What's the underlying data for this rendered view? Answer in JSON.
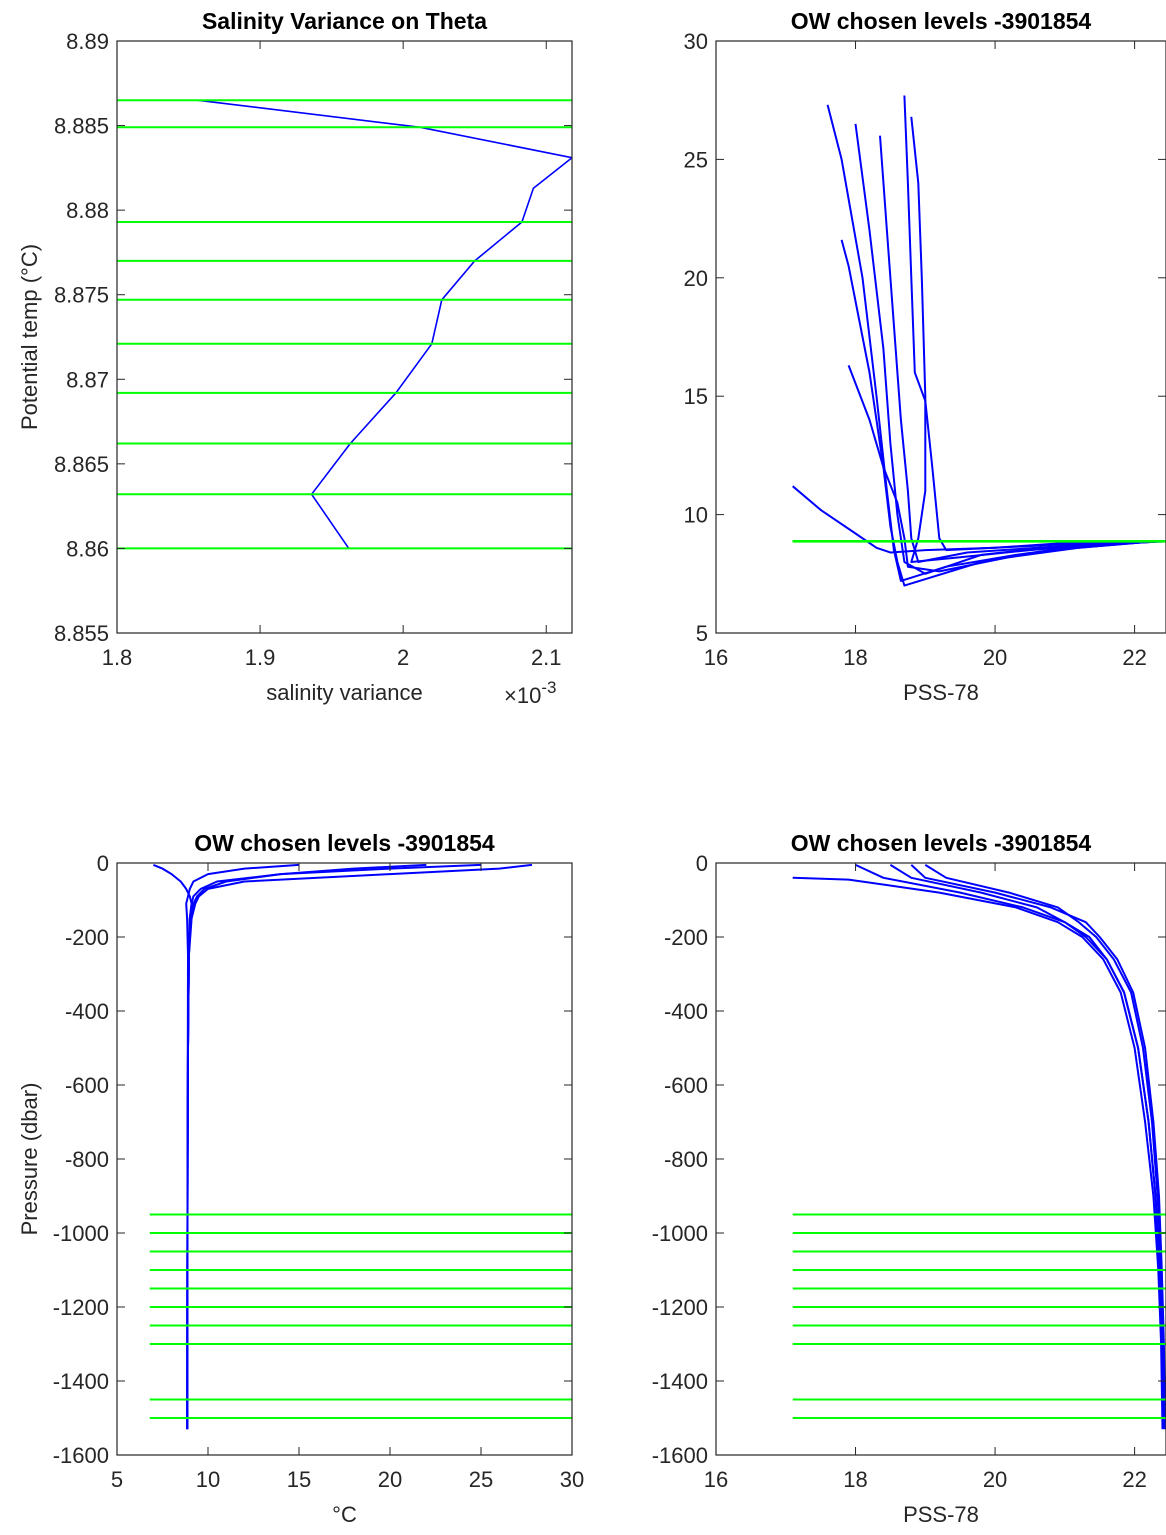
{
  "chart_data": [
    {
      "type": "line",
      "title": "Salinity Variance on Theta",
      "x_label": "salinity variance",
      "y_label": "Potential temp (°C)",
      "x_multiplier": "×10",
      "x_multiplier_exponent": "-3",
      "xlim": [
        1.8,
        2.118
      ],
      "xticks": [
        1.8,
        1.9,
        2,
        2.1
      ],
      "ylim": [
        8.855,
        8.89
      ],
      "yticks": [
        8.855,
        8.86,
        8.865,
        8.87,
        8.875,
        8.88,
        8.885,
        8.89
      ],
      "line_color": "#0000ff",
      "series": [
        {
          "x": [
            1.856,
            2.012,
            2.118,
            2.091,
            2.083,
            2.05,
            2.027,
            2.02,
            1.995,
            1.963,
            1.936,
            1.962
          ],
          "values": [
            8.8865,
            8.8849,
            8.8831,
            8.8813,
            8.8793,
            8.877,
            8.8747,
            8.8721,
            8.8692,
            8.8662,
            8.8632,
            8.86
          ]
        }
      ],
      "hlines": {
        "color": "#00ff00",
        "values": [
          8.8865,
          8.8849,
          8.8793,
          8.877,
          8.8747,
          8.8721,
          8.8692,
          8.8662,
          8.8632,
          8.86
        ]
      }
    },
    {
      "type": "line",
      "title": "OW chosen levels -3901854",
      "x_label": "PSS-78",
      "xlim": [
        16,
        22.45
      ],
      "xticks": [
        16,
        18,
        20,
        22
      ],
      "ylim": [
        5,
        30
      ],
      "yticks": [
        5,
        10,
        15,
        20,
        25,
        30
      ],
      "line_color": "#0000ff",
      "series": [
        {
          "x": [
            17.6,
            17.8,
            18.1,
            18.3,
            18.45,
            18.55,
            18.65,
            19.3,
            20.3,
            21.3,
            22.3
          ],
          "values": [
            27.3,
            25,
            20,
            15,
            11,
            8.5,
            7.2,
            7.8,
            8.3,
            8.7,
            8.85
          ]
        },
        {
          "x": [
            18.8,
            18.9,
            18.95,
            19.0,
            19.0,
            18.9,
            18.8,
            19.5,
            20.5,
            21.5,
            22.3
          ],
          "values": [
            26.8,
            24,
            20,
            15,
            11,
            9,
            8,
            8.2,
            8.5,
            8.75,
            8.85
          ]
        },
        {
          "x": [
            18.7,
            18.75,
            18.8,
            18.85,
            19.0,
            19.1,
            19.2,
            19.3,
            20,
            21,
            22.3
          ],
          "values": [
            27.7,
            24,
            20,
            16,
            14.8,
            12,
            9,
            8.5,
            8.6,
            8.8,
            8.85
          ]
        },
        {
          "x": [
            17.8,
            17.9,
            18.2,
            18.4,
            18.5,
            18.6,
            18.7,
            19.8,
            20.8,
            22.2
          ],
          "values": [
            21.6,
            20.5,
            16,
            12,
            9.5,
            8,
            7,
            8,
            8.5,
            8.85
          ]
        },
        {
          "x": [
            17.1,
            17.5,
            18.0,
            18.3,
            18.5,
            19.0,
            20.0,
            21.0,
            22.1
          ],
          "values": [
            11.2,
            10.2,
            9.2,
            8.6,
            8.4,
            8.5,
            8.6,
            8.75,
            8.85
          ]
        },
        {
          "x": [
            18.0,
            18.2,
            18.4,
            18.5,
            18.6,
            18.7,
            19.0,
            19.8,
            20.7,
            22.0
          ],
          "values": [
            26.5,
            22,
            17,
            13,
            10,
            8,
            7.5,
            8.3,
            8.6,
            8.85
          ]
        },
        {
          "x": [
            18.35,
            18.45,
            18.55,
            18.65,
            18.75,
            18.8,
            18.9,
            19.6,
            20.6,
            21.7,
            22.4
          ],
          "values": [
            26,
            22,
            18,
            14,
            11,
            9,
            8,
            8.4,
            8.6,
            8.8,
            8.86
          ]
        },
        {
          "x": [
            17.9,
            18.2,
            18.4,
            18.6,
            18.7,
            18.75,
            19.2,
            20.2,
            21.2,
            22.2
          ],
          "values": [
            16.3,
            14,
            12,
            10.5,
            9,
            7.8,
            7.6,
            8.2,
            8.6,
            8.85
          ]
        }
      ],
      "hlines": {
        "color": "#00ff00",
        "xmin": 17.1,
        "values": [
          8.8865,
          8.8849,
          8.8793,
          8.877,
          8.8747,
          8.8721,
          8.8692,
          8.8662,
          8.8632,
          8.86
        ]
      }
    },
    {
      "type": "line",
      "title": "OW chosen levels -3901854",
      "x_label": "°C",
      "y_label": "Pressure (dbar)",
      "xlim": [
        5,
        30
      ],
      "xticks": [
        5,
        10,
        15,
        20,
        25,
        30
      ],
      "ylim": [
        -1600,
        0
      ],
      "yticks": [
        -1600,
        -1400,
        -1200,
        -1000,
        -800,
        -600,
        -400,
        -200,
        0
      ],
      "line_color": "#0000ff",
      "series": [
        {
          "x": [
            27.8,
            26,
            20,
            12,
            10,
            9.5,
            9.3,
            9.1,
            8.95,
            8.9,
            8.88,
            8.87,
            8.86,
            8.86
          ],
          "values": [
            -5,
            -15,
            -30,
            -50,
            -70,
            -90,
            -110,
            -150,
            -250,
            -500,
            -800,
            -1100,
            -1400,
            -1530
          ]
        },
        {
          "x": [
            7.0,
            7.5,
            8.0,
            8.5,
            8.8,
            9.0,
            9.1,
            9.0,
            8.95,
            8.9,
            8.88,
            8.87,
            8.86,
            8.86
          ],
          "values": [
            -5,
            -15,
            -30,
            -50,
            -70,
            -90,
            -110,
            -150,
            -250,
            -500,
            -800,
            -1100,
            -1400,
            -1530
          ]
        },
        {
          "x": [
            22,
            18,
            14,
            11,
            9.8,
            9.4,
            9.2,
            9.05,
            8.95,
            8.9,
            8.88,
            8.87,
            8.86,
            8.86
          ],
          "values": [
            -5,
            -15,
            -30,
            -50,
            -70,
            -90,
            -110,
            -150,
            -250,
            -500,
            -800,
            -1100,
            -1400,
            -1530
          ]
        },
        {
          "x": [
            15,
            12,
            10,
            9.2,
            9,
            8.9,
            8.8,
            8.85,
            8.9,
            8.89,
            8.88,
            8.87,
            8.86,
            8.86
          ],
          "values": [
            -5,
            -15,
            -30,
            -50,
            -70,
            -90,
            -110,
            -150,
            -250,
            -500,
            -800,
            -1100,
            -1400,
            -1530
          ]
        },
        {
          "x": [
            25,
            20,
            14,
            10.5,
            9.6,
            9.2,
            9.1,
            9.0,
            8.95,
            8.9,
            8.88,
            8.87,
            8.86,
            8.86
          ],
          "values": [
            -5,
            -15,
            -30,
            -50,
            -70,
            -90,
            -110,
            -150,
            -250,
            -500,
            -800,
            -1100,
            -1400,
            -1530
          ]
        }
      ],
      "hlines": {
        "color": "#00ff00",
        "xmin": 6.8,
        "values": [
          -950,
          -1000,
          -1050,
          -1100,
          -1150,
          -1200,
          -1250,
          -1300,
          -1450,
          -1500
        ]
      }
    },
    {
      "type": "line",
      "title": "OW chosen levels -3901854",
      "x_label": "PSS-78",
      "xlim": [
        16,
        22.45
      ],
      "xticks": [
        16,
        18,
        20,
        22
      ],
      "ylim": [
        -1600,
        0
      ],
      "yticks": [
        -1600,
        -1400,
        -1200,
        -1000,
        -800,
        -600,
        -400,
        -200,
        0
      ],
      "line_color": "#0000ff",
      "series": [
        {
          "x": [
            18.5,
            18.8,
            19.8,
            20.6,
            21.0,
            21.3,
            21.6,
            21.85,
            22.05,
            22.2,
            22.3,
            22.36,
            22.4,
            22.42
          ],
          "values": [
            -5,
            -40,
            -80,
            -120,
            -160,
            -200,
            -260,
            -350,
            -500,
            -700,
            -900,
            -1100,
            -1300,
            -1530
          ]
        },
        {
          "x": [
            17.1,
            17.9,
            19.2,
            20.3,
            20.9,
            21.25,
            21.55,
            21.8,
            22.0,
            22.15,
            22.27,
            22.34,
            22.38,
            22.4
          ],
          "values": [
            -40,
            -45,
            -80,
            -120,
            -160,
            -200,
            -260,
            -350,
            -500,
            -700,
            -900,
            -1100,
            -1300,
            -1530
          ]
        },
        {
          "x": [
            19.0,
            19.3,
            20.2,
            20.9,
            21.2,
            21.45,
            21.7,
            21.95,
            22.12,
            22.25,
            22.33,
            22.38,
            22.41,
            22.44
          ],
          "values": [
            -5,
            -40,
            -80,
            -120,
            -160,
            -200,
            -260,
            -350,
            -500,
            -700,
            -900,
            -1100,
            -1300,
            -1530
          ]
        },
        {
          "x": [
            18.0,
            18.4,
            19.5,
            20.4,
            21.0,
            21.35,
            21.6,
            21.85,
            22.05,
            22.2,
            22.3,
            22.36,
            22.4,
            22.43
          ],
          "values": [
            -5,
            -40,
            -80,
            -120,
            -160,
            -200,
            -260,
            -350,
            -500,
            -700,
            -900,
            -1100,
            -1300,
            -1530
          ]
        },
        {
          "x": [
            18.8,
            19.0,
            20.0,
            20.8,
            21.3,
            21.5,
            21.75,
            21.98,
            22.15,
            22.27,
            22.35,
            22.39,
            22.42,
            22.44
          ],
          "values": [
            -5,
            -40,
            -80,
            -120,
            -160,
            -200,
            -260,
            -350,
            -500,
            -700,
            -900,
            -1100,
            -1300,
            -1530
          ]
        }
      ],
      "hlines": {
        "color": "#00ff00",
        "xmin": 17.1,
        "values": [
          -950,
          -1000,
          -1050,
          -1100,
          -1150,
          -1200,
          -1250,
          -1300,
          -1450,
          -1500
        ]
      }
    }
  ]
}
